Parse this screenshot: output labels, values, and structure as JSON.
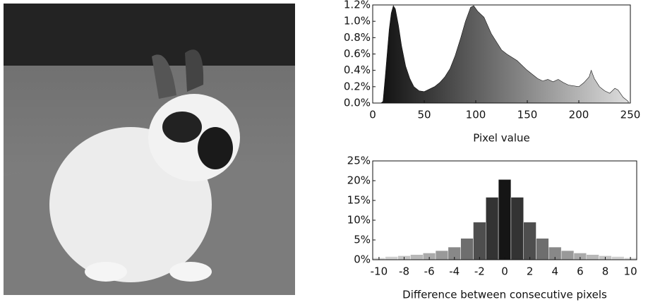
{
  "chart_data": [
    {
      "type": "area",
      "x_label": "Pixel value",
      "x": [
        8,
        10,
        12,
        14,
        16,
        18,
        20,
        22,
        25,
        28,
        32,
        36,
        40,
        45,
        50,
        55,
        60,
        65,
        70,
        75,
        80,
        85,
        90,
        95,
        98,
        102,
        108,
        115,
        120,
        125,
        130,
        140,
        150,
        160,
        165,
        170,
        175,
        180,
        185,
        190,
        200,
        205,
        210,
        212,
        215,
        220,
        225,
        230,
        235,
        238,
        243,
        248
      ],
      "values": [
        0,
        0.02,
        0.3,
        0.6,
        0.9,
        1.1,
        1.19,
        1.15,
        0.95,
        0.7,
        0.45,
        0.3,
        0.2,
        0.15,
        0.14,
        0.17,
        0.2,
        0.25,
        0.32,
        0.42,
        0.58,
        0.78,
        1.0,
        1.17,
        1.19,
        1.12,
        1.05,
        0.85,
        0.75,
        0.65,
        0.6,
        0.52,
        0.4,
        0.3,
        0.27,
        0.29,
        0.26,
        0.29,
        0.25,
        0.22,
        0.2,
        0.25,
        0.32,
        0.4,
        0.3,
        0.2,
        0.15,
        0.12,
        0.18,
        0.16,
        0.07,
        0.02
      ],
      "color_start": "#111111",
      "color_end": "#dddddd",
      "xlim": [
        0,
        250
      ],
      "xticks": [
        0,
        50,
        100,
        150,
        200,
        250
      ],
      "ylim": [
        0,
        1.2
      ],
      "yticks": [
        {
          "value": 0,
          "label": "0.0%"
        },
        {
          "value": 0.2,
          "label": "0.2%"
        },
        {
          "value": 0.4,
          "label": "0.4%"
        },
        {
          "value": 0.6,
          "label": "0.6%"
        },
        {
          "value": 0.8,
          "label": "0.8%"
        },
        {
          "value": 1.0,
          "label": "1.0%"
        },
        {
          "value": 1.2,
          "label": "1.2%"
        }
      ]
    },
    {
      "type": "histogram",
      "x_label": "Difference between consecutive pixels",
      "x": [
        -10,
        -9,
        -8,
        -7,
        -6,
        -5,
        -4,
        -3,
        -2,
        -1,
        0,
        1,
        2,
        3,
        4,
        5,
        6,
        7,
        8,
        9,
        10
      ],
      "values": [
        0.5,
        0.8,
        1.0,
        1.3,
        1.7,
        2.3,
        3.2,
        5.4,
        9.5,
        15.8,
        20.3,
        15.8,
        9.5,
        5.4,
        3.2,
        2.3,
        1.7,
        1.3,
        1.0,
        0.8,
        0.5
      ],
      "colors": [
        "#d8d8d8",
        "#cfcfcf",
        "#c4c4c4",
        "#b8b8b8",
        "#aaaaaa",
        "#999999",
        "#888888",
        "#6e6e6e",
        "#4e4e4e",
        "#333333",
        "#151515",
        "#333333",
        "#4e4e4e",
        "#6e6e6e",
        "#888888",
        "#999999",
        "#aaaaaa",
        "#b8b8b8",
        "#c4c4c4",
        "#cfcfcf",
        "#d8d8d8"
      ],
      "xlim": [
        -10.5,
        10.5
      ],
      "xticks": [
        -10,
        -8,
        -6,
        -4,
        -2,
        0,
        2,
        4,
        6,
        8,
        10
      ],
      "ylim": [
        0,
        25
      ],
      "yticks": [
        {
          "value": 0,
          "label": "0%"
        },
        {
          "value": 5,
          "label": "5%"
        },
        {
          "value": 10,
          "label": "10%"
        },
        {
          "value": 15,
          "label": "15%"
        },
        {
          "value": 20,
          "label": "20%"
        },
        {
          "value": 25,
          "label": "25%"
        }
      ]
    }
  ]
}
